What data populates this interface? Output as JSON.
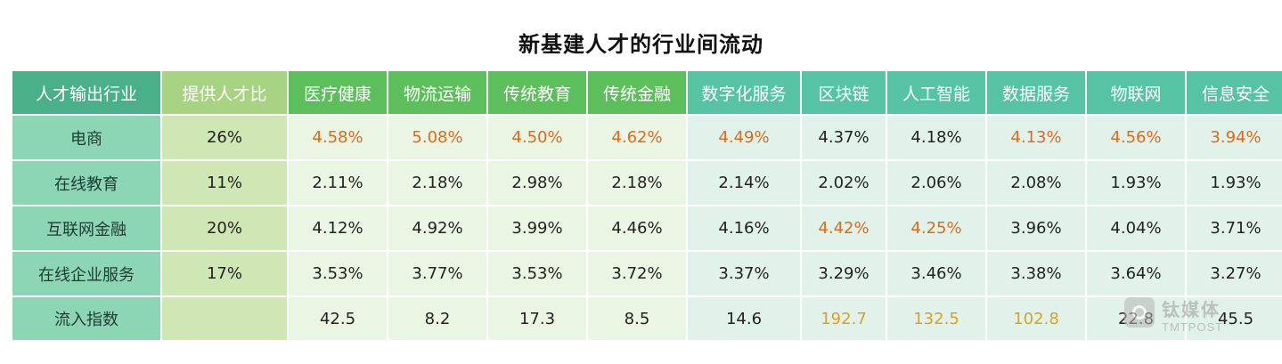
{
  "chart_data": {
    "type": "table",
    "title": "新基建人才的行业间流动",
    "columns": [
      "人才输出行业",
      "提供人才比",
      "医疗健康",
      "物流运输",
      "传统教育",
      "传统金融",
      "数字化服务",
      "区块链",
      "人工智能",
      "数据服务",
      "物联网",
      "信息安全"
    ],
    "header_colors": [
      "#4ab08a",
      "#a8d383",
      "#5cbf5c",
      "#5cbf5c",
      "#5cbf5c",
      "#5cbf5c",
      "#56c3a2",
      "#56c3a2",
      "#56c3a2",
      "#56c3a2",
      "#56c3a2",
      "#56c3a2"
    ],
    "column_fill_colors": [
      "#8cd5b5",
      "#cfe6b5",
      "#eaf5e3",
      "#eaf5e3",
      "#eaf5e3",
      "#eaf5e3",
      "#e0f2ea",
      "#e0f2ea",
      "#e0f2ea",
      "#e0f2ea",
      "#e0f2ea",
      "#e0f2ea"
    ],
    "highlight_colors": {
      "orange": "#e06a1c",
      "gold": "#d8a323"
    },
    "rows": [
      {
        "cells": [
          "电商",
          "26%",
          "4.58%",
          "5.08%",
          "4.50%",
          "4.62%",
          "4.49%",
          "4.37%",
          "4.18%",
          "4.13%",
          "4.56%",
          "3.94%"
        ],
        "highlight": [
          "",
          "",
          "orange",
          "orange",
          "orange",
          "orange",
          "orange",
          "",
          "",
          "orange",
          "orange",
          "orange"
        ]
      },
      {
        "cells": [
          "在线教育",
          "11%",
          "2.11%",
          "2.18%",
          "2.98%",
          "2.18%",
          "2.14%",
          "2.02%",
          "2.06%",
          "2.08%",
          "1.93%",
          "1.93%"
        ],
        "highlight": [
          "",
          "",
          "",
          "",
          "",
          "",
          "",
          "",
          "",
          "",
          "",
          ""
        ]
      },
      {
        "cells": [
          "互联网金融",
          "20%",
          "4.12%",
          "4.92%",
          "3.99%",
          "4.46%",
          "4.16%",
          "4.42%",
          "4.25%",
          "3.96%",
          "4.04%",
          "3.71%"
        ],
        "highlight": [
          "",
          "",
          "",
          "",
          "",
          "",
          "",
          "orange",
          "orange",
          "",
          "",
          ""
        ]
      },
      {
        "cells": [
          "在线企业服务",
          "17%",
          "3.53%",
          "3.77%",
          "3.53%",
          "3.72%",
          "3.37%",
          "3.29%",
          "3.46%",
          "3.38%",
          "3.64%",
          "3.27%"
        ],
        "highlight": [
          "",
          "",
          "",
          "",
          "",
          "",
          "",
          "",
          "",
          "",
          "",
          ""
        ]
      },
      {
        "cells": [
          "流入指数",
          "",
          "42.5",
          "8.2",
          "17.3",
          "8.5",
          "14.6",
          "192.7",
          "132.5",
          "102.8",
          "22.8",
          "45.5"
        ],
        "highlight": [
          "",
          "gray",
          "",
          "",
          "",
          "",
          "",
          "gold",
          "gold",
          "gold",
          "",
          ""
        ]
      }
    ]
  },
  "watermark": {
    "name": "钛媒体",
    "sub": "TMTPOST"
  }
}
